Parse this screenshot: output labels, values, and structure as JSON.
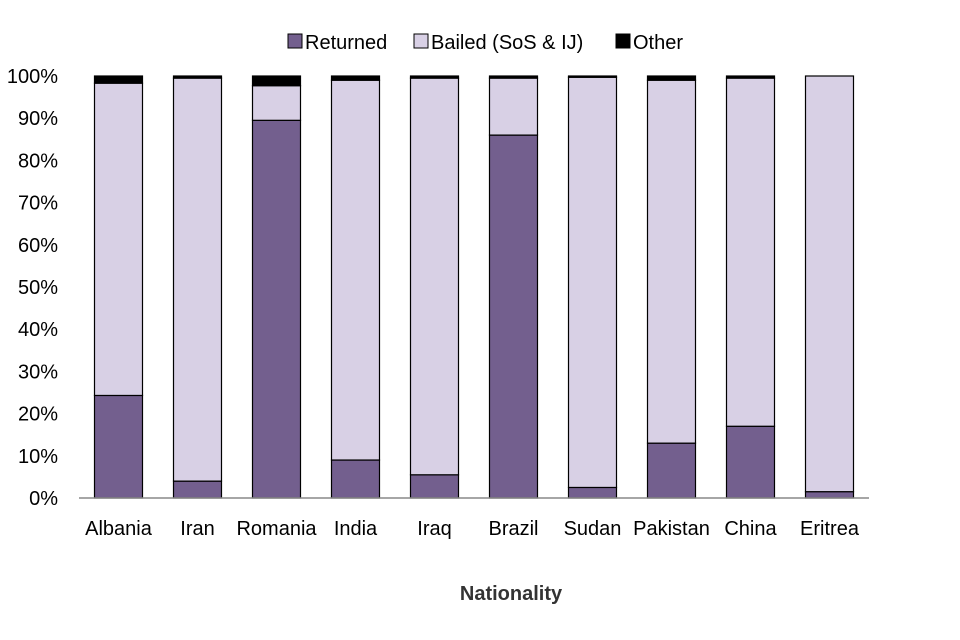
{
  "chart_data": {
    "type": "bar",
    "stacked": true,
    "normalized": true,
    "title": "",
    "xlabel": "Nationality",
    "ylabel": "",
    "ylim": [
      0,
      100
    ],
    "yticks": [
      "0%",
      "10%",
      "20%",
      "30%",
      "40%",
      "50%",
      "60%",
      "70%",
      "80%",
      "90%",
      "100%"
    ],
    "legend_position": "top",
    "categories": [
      "Albania",
      "Iran",
      "Romania",
      "India",
      "Iraq",
      "Brazil",
      "Sudan",
      "Pakistan",
      "China",
      "Eritrea"
    ],
    "series": [
      {
        "name": "Returned",
        "color": "#735f8e",
        "values": [
          24.3,
          4.0,
          89.5,
          9.0,
          5.5,
          86.0,
          2.5,
          13.0,
          17.0,
          1.5
        ]
      },
      {
        "name": "Bailed (SoS & IJ)",
        "color": "#d8d0e5",
        "values": [
          74.0,
          95.5,
          8.2,
          90.0,
          94.0,
          13.5,
          97.2,
          86.0,
          82.5,
          98.5
        ]
      },
      {
        "name": "Other",
        "color": "#000000",
        "values": [
          1.7,
          0.5,
          2.3,
          1.0,
          0.5,
          0.5,
          0.3,
          1.0,
          0.5,
          0.0
        ]
      }
    ]
  }
}
